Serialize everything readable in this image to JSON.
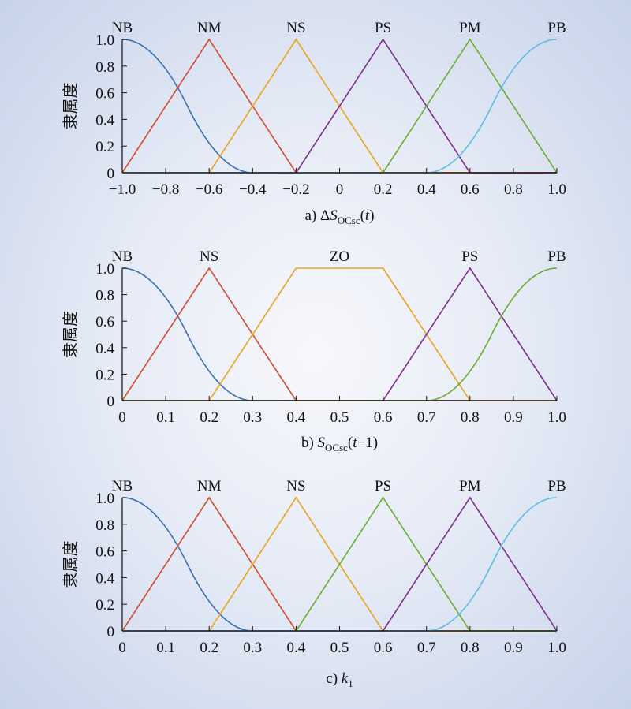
{
  "colors": {
    "blue": "#3a6fb8",
    "red": "#d6492b",
    "orange": "#e8a31e",
    "purple": "#7b2c92",
    "green": "#6aac2f",
    "cyan": "#5bbde6"
  },
  "chart_data": [
    {
      "type": "line",
      "caption": {
        "prefix": "a) ΔS",
        "sub": "OCsc",
        "suffix": "(t)"
      },
      "ylabel": "隶属度",
      "xlim": [
        -1.0,
        1.0
      ],
      "ylim": [
        0,
        1.0
      ],
      "xticks": [
        "−1.0",
        "−0.8",
        "−0.6",
        "−0.4",
        "−0.2",
        "0",
        "0.2",
        "0.4",
        "0.6",
        "0.8",
        "1.0"
      ],
      "yticks": [
        "0",
        "0.2",
        "0.4",
        "0.6",
        "0.8",
        "1.0"
      ],
      "series": [
        {
          "name": "NB",
          "shape": "zmf",
          "params": [
            -1.0,
            -0.4
          ],
          "color": "blue"
        },
        {
          "name": "NM",
          "shape": "trimf",
          "params": [
            -1.0,
            -0.6,
            -0.2
          ],
          "color": "red"
        },
        {
          "name": "NS",
          "shape": "trimf",
          "params": [
            -0.6,
            -0.2,
            0.2
          ],
          "color": "orange"
        },
        {
          "name": "PS",
          "shape": "trimf",
          "params": [
            -0.2,
            0.2,
            0.6
          ],
          "color": "purple"
        },
        {
          "name": "PM",
          "shape": "trimf",
          "params": [
            0.2,
            0.6,
            1.0
          ],
          "color": "green"
        },
        {
          "name": "PB",
          "shape": "smf",
          "params": [
            0.4,
            1.0
          ],
          "color": "cyan"
        }
      ]
    },
    {
      "type": "line",
      "caption": {
        "prefix": "b) S",
        "sub": "OCsc",
        "suffix": "(t−1)"
      },
      "ylabel": "隶属度",
      "xlim": [
        0,
        1.0
      ],
      "ylim": [
        0,
        1.0
      ],
      "xticks": [
        "0",
        "0.1",
        "0.2",
        "0.3",
        "0.4",
        "0.5",
        "0.6",
        "0.7",
        "0.8",
        "0.9",
        "1.0"
      ],
      "yticks": [
        "0",
        "0.2",
        "0.4",
        "0.6",
        "0.8",
        "1.0"
      ],
      "series": [
        {
          "name": "NB",
          "shape": "zmf",
          "params": [
            0,
            0.3
          ],
          "color": "blue"
        },
        {
          "name": "NS",
          "shape": "trimf",
          "params": [
            0,
            0.2,
            0.4
          ],
          "color": "red"
        },
        {
          "name": "ZO",
          "shape": "trapmf",
          "params": [
            0.2,
            0.4,
            0.6,
            0.8
          ],
          "color": "orange"
        },
        {
          "name": "PS",
          "shape": "trimf",
          "params": [
            0.6,
            0.8,
            1.0
          ],
          "color": "purple"
        },
        {
          "name": "PB",
          "shape": "smf",
          "params": [
            0.7,
            1.0
          ],
          "color": "green"
        }
      ]
    },
    {
      "type": "line",
      "caption": {
        "prefix": "c) k",
        "sub": "1",
        "suffix": ""
      },
      "ylabel": "隶属度",
      "xlim": [
        0,
        1.0
      ],
      "ylim": [
        0,
        1.0
      ],
      "xticks": [
        "0",
        "0.1",
        "0.2",
        "0.3",
        "0.4",
        "0.5",
        "0.6",
        "0.7",
        "0.8",
        "0.9",
        "1.0"
      ],
      "yticks": [
        "0",
        "0.2",
        "0.4",
        "0.6",
        "0.8",
        "1.0"
      ],
      "series": [
        {
          "name": "NB",
          "shape": "zmf",
          "params": [
            0,
            0.3
          ],
          "color": "blue"
        },
        {
          "name": "NM",
          "shape": "trimf",
          "params": [
            0,
            0.2,
            0.4
          ],
          "color": "red"
        },
        {
          "name": "NS",
          "shape": "trimf",
          "params": [
            0.2,
            0.4,
            0.6
          ],
          "color": "orange"
        },
        {
          "name": "PS",
          "shape": "trimf",
          "params": [
            0.4,
            0.6,
            0.8
          ],
          "color": "green"
        },
        {
          "name": "PM",
          "shape": "trimf",
          "params": [
            0.6,
            0.8,
            1.0
          ],
          "color": "purple"
        },
        {
          "name": "PB",
          "shape": "smf",
          "params": [
            0.7,
            1.0
          ],
          "color": "cyan"
        }
      ]
    }
  ]
}
